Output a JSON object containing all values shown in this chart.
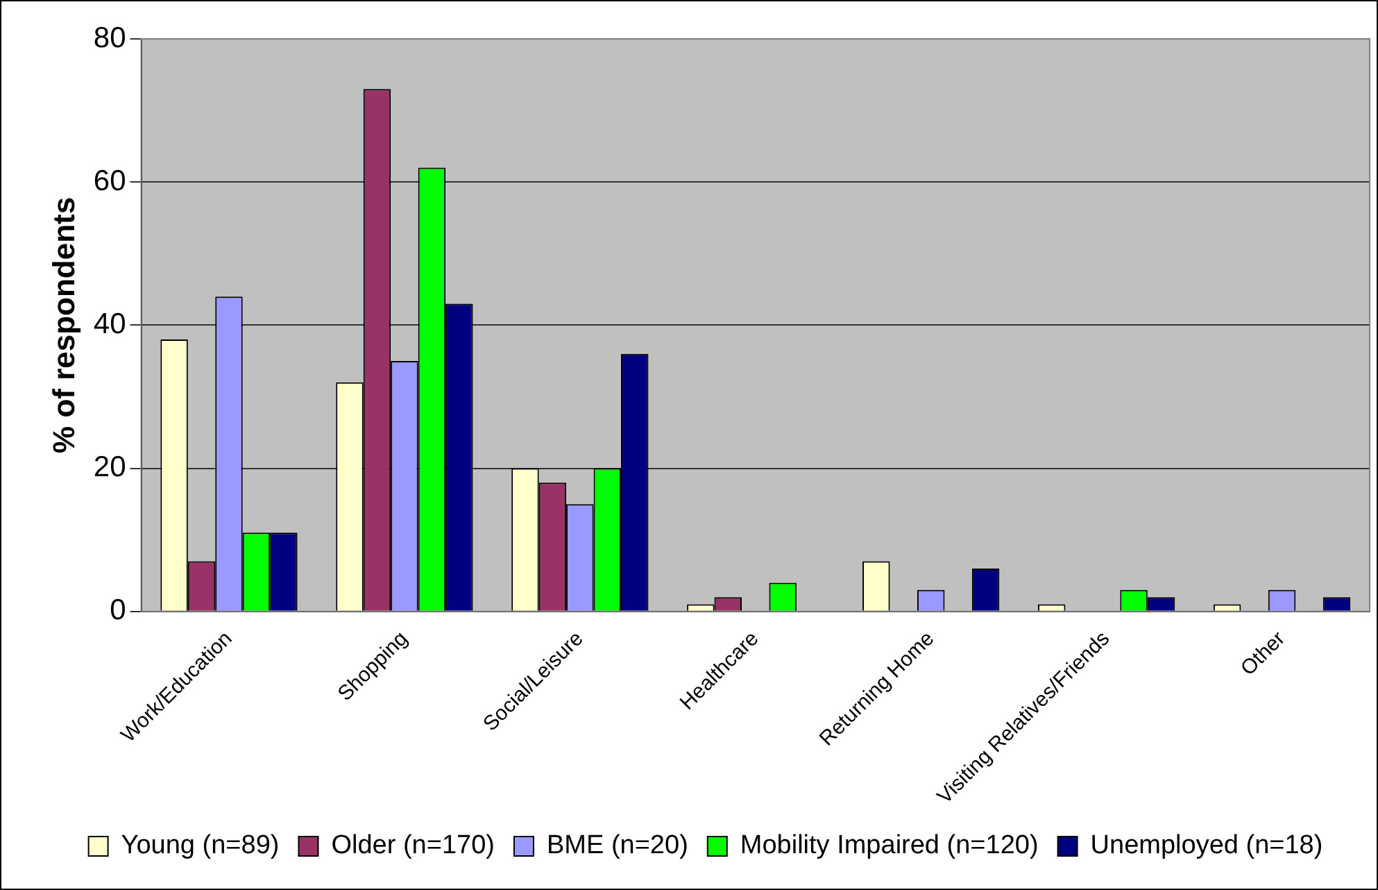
{
  "chart_data": {
    "type": "bar",
    "ylabel": "% of respondents",
    "categories": [
      "Work/Education",
      "Shopping",
      "Social/Leisure",
      "Healthcare",
      "Returning Home",
      "Visiting Relatives/Friends",
      "Other"
    ],
    "series": [
      {
        "name": "Young (n=89)",
        "color": "#ffffcc",
        "values": [
          38,
          32,
          20,
          1,
          7,
          1,
          1
        ]
      },
      {
        "name": "Older (n=170)",
        "color": "#993366",
        "values": [
          7,
          73,
          18,
          2,
          null,
          null,
          null
        ]
      },
      {
        "name": "BME (n=20)",
        "color": "#9999ff",
        "values": [
          44,
          35,
          15,
          null,
          3,
          null,
          3
        ]
      },
      {
        "name": "Mobility Impaired (n=120)",
        "color": "#00ff00",
        "values": [
          11,
          62,
          20,
          4,
          null,
          3,
          null
        ]
      },
      {
        "name": "Unemployed (n=18)",
        "color": "#000080",
        "values": [
          11,
          43,
          36,
          null,
          6,
          2,
          2
        ]
      }
    ],
    "ylim": [
      0,
      80
    ],
    "yticks": [
      0,
      20,
      40,
      60,
      80
    ],
    "grid": "y",
    "legend": "bottom"
  }
}
